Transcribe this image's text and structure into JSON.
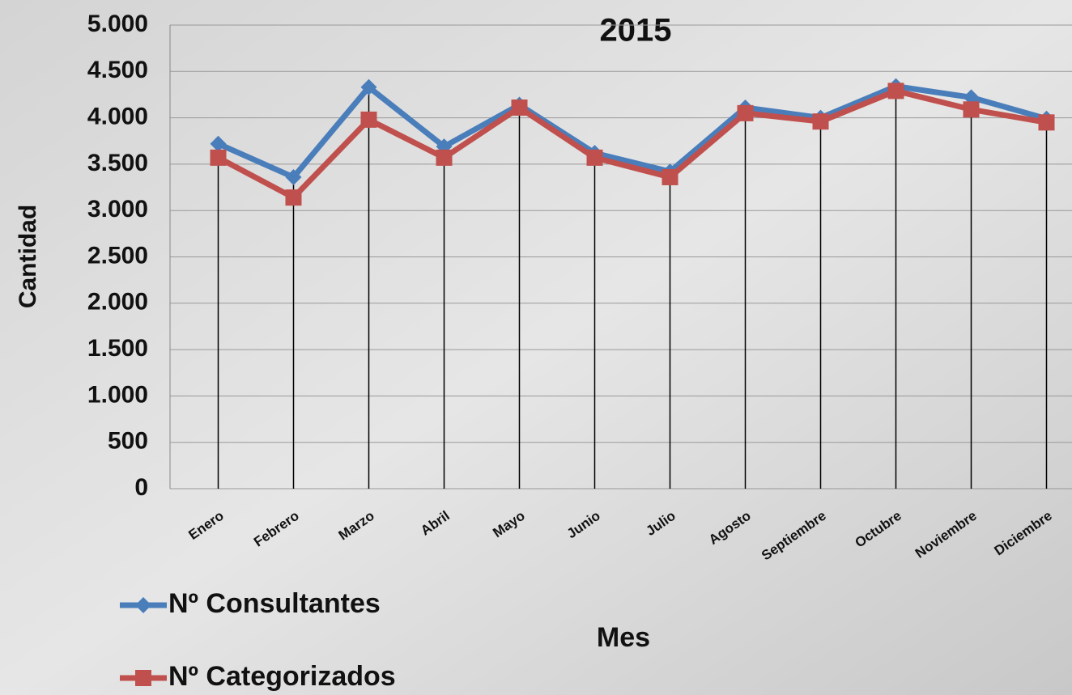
{
  "chart_data": {
    "type": "line",
    "title": "2015",
    "x_label": "Mes",
    "y_label": "Cantidad",
    "categories": [
      "Enero",
      "Febrero",
      "Marzo",
      "Abril",
      "Mayo",
      "Junio",
      "Julio",
      "Agosto",
      "Septiembre",
      "Octubre",
      "Noviembre",
      "Diciembre"
    ],
    "series": [
      {
        "name": "Nº Consultantes",
        "color": "#4a7ebb",
        "marker": "diamond",
        "values": [
          3720,
          3360,
          4330,
          3690,
          4140,
          3620,
          3420,
          4110,
          4000,
          4340,
          4220,
          3990
        ]
      },
      {
        "name": "Nº Categorizados",
        "color": "#c0504d",
        "marker": "square",
        "values": [
          3570,
          3140,
          3980,
          3570,
          4110,
          3570,
          3360,
          4050,
          3960,
          4290,
          4090,
          3950
        ]
      }
    ],
    "ylim": [
      0,
      5000
    ],
    "yticks": [
      0,
      500,
      {
        "value": 1000,
        "label": "1.000"
      },
      {
        "value": 1500,
        "label": "1.500"
      },
      {
        "value": 2000,
        "label": "2.000"
      },
      {
        "value": 2500,
        "label": "2.500"
      },
      {
        "value": 3000,
        "label": "3.000"
      },
      {
        "value": 3500,
        "label": "3.500"
      },
      {
        "value": 4000,
        "label": "4.000"
      },
      {
        "value": 4500,
        "label": "4.500"
      },
      {
        "value": 5000,
        "label": "5.000"
      }
    ],
    "grid": true
  }
}
